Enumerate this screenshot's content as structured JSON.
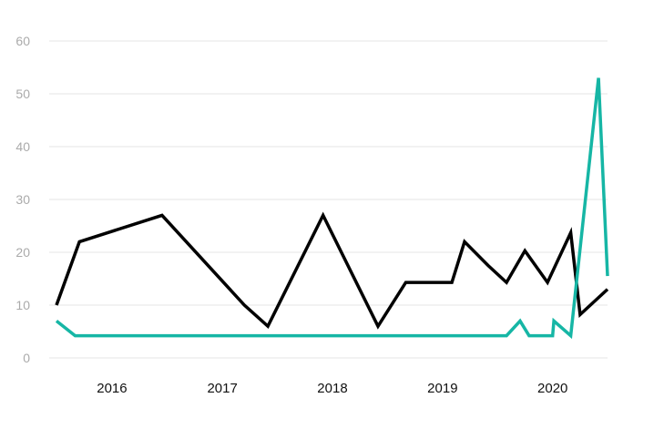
{
  "chart_data": {
    "type": "line",
    "title": "",
    "xlabel": "",
    "ylabel": "",
    "ylim": [
      0,
      60
    ],
    "yticks": [
      0,
      10,
      20,
      30,
      40,
      50,
      60
    ],
    "xlim": [
      "2015-07-01",
      "2020-07-01"
    ],
    "xticks": [
      {
        "label": "2016",
        "date": "2016-01-01"
      },
      {
        "label": "2017",
        "date": "2017-01-01"
      },
      {
        "label": "2018",
        "date": "2018-01-01"
      },
      {
        "label": "2019",
        "date": "2019-01-01"
      },
      {
        "label": "2020",
        "date": "2020-01-01"
      }
    ],
    "grid": true,
    "legend": "none",
    "series": [
      {
        "color": "#000000",
        "points": [
          [
            "2015-07-01",
            10
          ],
          [
            "2015-09-15",
            22
          ],
          [
            "2016-06-15",
            27
          ],
          [
            "2017-03-15",
            10
          ],
          [
            "2017-06-01",
            6
          ],
          [
            "2017-12-01",
            27
          ],
          [
            "2018-06-01",
            6
          ],
          [
            "2018-09-01",
            14.3
          ],
          [
            "2019-02-01",
            14.3
          ],
          [
            "2019-03-15",
            22
          ],
          [
            "2019-06-01",
            17.5
          ],
          [
            "2019-08-01",
            14.3
          ],
          [
            "2019-10-01",
            20.3
          ],
          [
            "2019-12-15",
            14.3
          ],
          [
            "2020-03-01",
            23.7
          ],
          [
            "2020-04-01",
            8.2
          ],
          [
            "2020-07-01",
            13
          ]
        ]
      },
      {
        "color": "#16b6a5",
        "points": [
          [
            "2015-07-01",
            7
          ],
          [
            "2015-09-01",
            4.2
          ],
          [
            "2019-08-01",
            4.2
          ],
          [
            "2019-09-15",
            7
          ],
          [
            "2019-10-15",
            4.2
          ],
          [
            "2020-01-01",
            4.2
          ],
          [
            "2020-01-05",
            7
          ],
          [
            "2020-03-01",
            4.2
          ],
          [
            "2020-06-01",
            53
          ],
          [
            "2020-07-01",
            15.5
          ]
        ]
      }
    ]
  }
}
